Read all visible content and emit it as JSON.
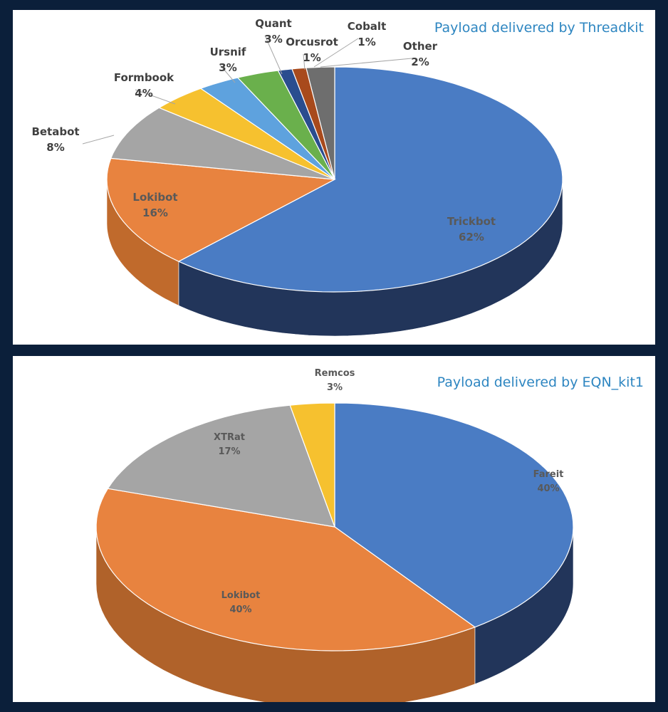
{
  "colors": {
    "background": "#0b1f3a",
    "title": "#2e86c1",
    "label": "#404040"
  },
  "charts": [
    {
      "title": "Payload delivered by Threadkit",
      "chart_data": {
        "type": "pie",
        "title": "Payload delivered by Threadkit",
        "three_d": true,
        "slices": [
          {
            "label": "Trickbot",
            "value": 62,
            "display": "62%",
            "color": "#4a7cc4",
            "dark": "#22355a"
          },
          {
            "label": "Lokibot",
            "value": 16,
            "display": "16%",
            "color": "#e8833f",
            "dark": "#c06a2c"
          },
          {
            "label": "Betabot",
            "value": 8,
            "display": "8%",
            "color": "#a5a5a5",
            "dark": "#7a7a7a"
          },
          {
            "label": "Formbook",
            "value": 4,
            "display": "4%",
            "color": "#f6c12f",
            "dark": "#b8901f"
          },
          {
            "label": "Ursnif",
            "value": 3,
            "display": "3%",
            "color": "#5ea2de",
            "dark": "#3a74a6"
          },
          {
            "label": "Quant",
            "value": 3,
            "display": "3%",
            "color": "#6ab04c",
            "dark": "#477a33"
          },
          {
            "label": "Orcusrot",
            "value": 1,
            "display": "1%",
            "color": "#2a4d8f",
            "dark": "#1a3160"
          },
          {
            "label": "Cobalt",
            "value": 1,
            "display": "1%",
            "color": "#a84a1c",
            "dark": "#7a3513"
          },
          {
            "label": "Other",
            "value": 2,
            "display": "2%",
            "color": "#6e6e6e",
            "dark": "#4a4a4a"
          }
        ]
      }
    },
    {
      "title": "Payload delivered by EQN_kit1",
      "chart_data": {
        "type": "pie",
        "title": "Payload delivered by EQN_kit1",
        "three_d": true,
        "slices": [
          {
            "label": "Fareit",
            "value": 40,
            "display": "40%",
            "color": "#4a7cc4",
            "dark": "#22355a"
          },
          {
            "label": "Lokibot",
            "value": 40,
            "display": "40%",
            "color": "#e8833f",
            "dark": "#b0622a"
          },
          {
            "label": "XTRat",
            "value": 17,
            "display": "17%",
            "color": "#a5a5a5",
            "dark": "#7a7a7a"
          },
          {
            "label": "Remcos",
            "value": 3,
            "display": "3%",
            "color": "#f6c12f",
            "dark": "#b8901f"
          }
        ]
      }
    }
  ]
}
